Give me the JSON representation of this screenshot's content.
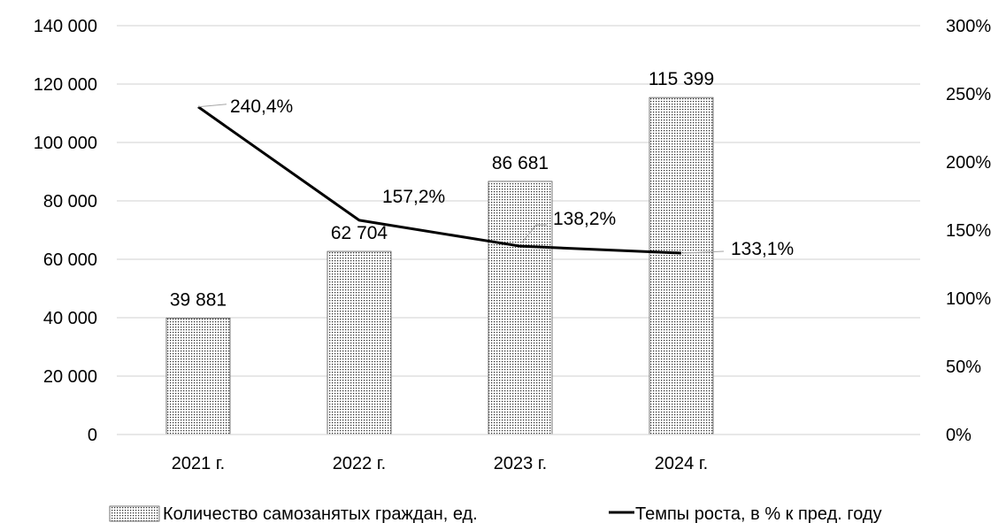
{
  "chart_data": {
    "type": "bar",
    "title": "",
    "categories": [
      "2021 г.",
      "2022 г.",
      "2023 г.",
      "2024 г."
    ],
    "series": [
      {
        "name": "Количество самозанятых граждан, ед.",
        "type": "bar",
        "axis": "left",
        "values": [
          39881,
          62704,
          86681,
          115399
        ],
        "labels": [
          "39 881",
          "62 704",
          "86 681",
          "115 399"
        ],
        "pattern": "dotted"
      },
      {
        "name": "Темпы роста, в % к пред. году",
        "type": "line",
        "axis": "right",
        "values": [
          240.4,
          157.2,
          138.2,
          133.1
        ],
        "labels": [
          "240,4%",
          "157,2%",
          "138,2%",
          "133,1%"
        ],
        "color": "#000000"
      }
    ],
    "y_left": {
      "min": 0,
      "max": 140000,
      "ticks": [
        0,
        20000,
        40000,
        60000,
        80000,
        100000,
        120000,
        140000
      ],
      "tick_labels": [
        "0",
        "20 000",
        "40 000",
        "60 000",
        "80 000",
        "100 000",
        "120 000",
        "140 000"
      ]
    },
    "y_right": {
      "min": 0,
      "max": 300,
      "ticks": [
        0,
        50,
        100,
        150,
        200,
        250,
        300
      ],
      "tick_labels": [
        "0%",
        "50%",
        "100%",
        "150%",
        "200%",
        "250%",
        "300%"
      ]
    },
    "grid": true,
    "legend_position": "bottom"
  }
}
